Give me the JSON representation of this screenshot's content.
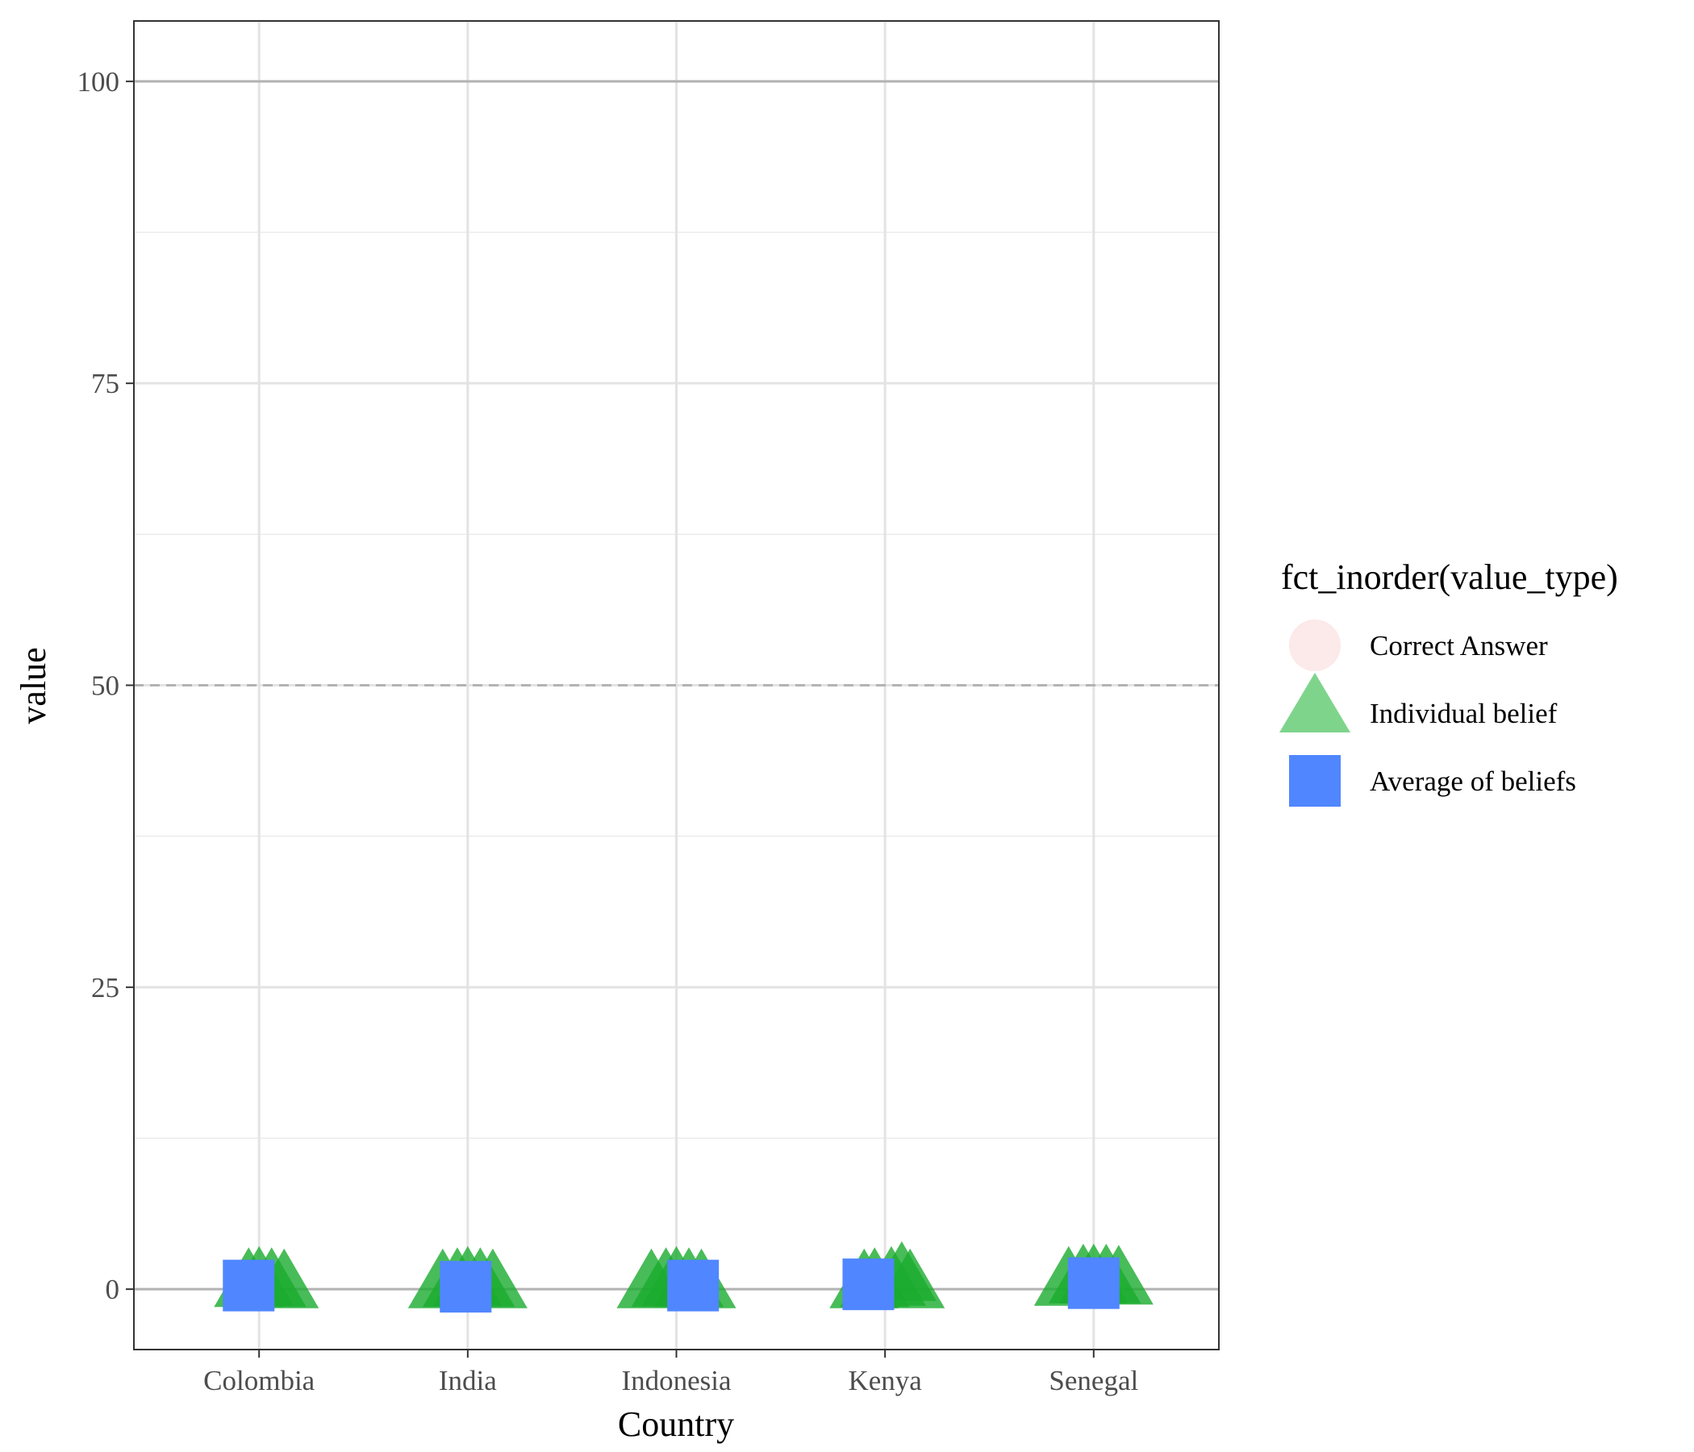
{
  "chart_data": {
    "type": "scatter",
    "title": "",
    "xlabel": "Country",
    "ylabel": "value",
    "categories": [
      "Colombia",
      "India",
      "Indonesia",
      "Kenya",
      "Senegal"
    ],
    "ylim": [
      -5,
      105
    ],
    "yticks": [
      0,
      25,
      50,
      75,
      100
    ],
    "grid": true,
    "reference_lines": [
      {
        "value": 0,
        "style": "solid"
      },
      {
        "value": 50,
        "style": "dashed"
      },
      {
        "value": 100,
        "style": "solid"
      }
    ],
    "legend": {
      "title": "fct_inorder(value_type)",
      "placement": "right",
      "entries": [
        {
          "label": "Correct Answer",
          "shape": "circle",
          "color": "#fce9e9"
        },
        {
          "label": "Individual belief",
          "shape": "triangle",
          "color": "#7fd48c"
        },
        {
          "label": "Average of beliefs",
          "shape": "square",
          "color": "#5086ff"
        }
      ]
    },
    "series": [
      {
        "name": "Individual belief",
        "shape": "triangle",
        "color": "#1aab2e",
        "points": [
          {
            "category": "Colombia",
            "offset": -0.05,
            "value": 0.3
          },
          {
            "category": "Colombia",
            "offset": 0.0,
            "value": 0.4
          },
          {
            "category": "Colombia",
            "offset": 0.06,
            "value": 0.3
          },
          {
            "category": "Colombia",
            "offset": 0.12,
            "value": 0.2
          },
          {
            "category": "India",
            "offset": -0.12,
            "value": 0.2
          },
          {
            "category": "India",
            "offset": -0.05,
            "value": 0.3
          },
          {
            "category": "India",
            "offset": 0.0,
            "value": 0.4
          },
          {
            "category": "India",
            "offset": 0.06,
            "value": 0.3
          },
          {
            "category": "India",
            "offset": 0.12,
            "value": 0.2
          },
          {
            "category": "Indonesia",
            "offset": -0.12,
            "value": 0.2
          },
          {
            "category": "Indonesia",
            "offset": -0.05,
            "value": 0.3
          },
          {
            "category": "Indonesia",
            "offset": 0.0,
            "value": 0.4
          },
          {
            "category": "Indonesia",
            "offset": 0.06,
            "value": 0.3
          },
          {
            "category": "Indonesia",
            "offset": 0.12,
            "value": 0.2
          },
          {
            "category": "Kenya",
            "offset": -0.1,
            "value": 0.2
          },
          {
            "category": "Kenya",
            "offset": -0.05,
            "value": 0.3
          },
          {
            "category": "Kenya",
            "offset": 0.03,
            "value": 0.4
          },
          {
            "category": "Kenya",
            "offset": 0.08,
            "value": 0.8
          },
          {
            "category": "Kenya",
            "offset": 0.12,
            "value": 0.2
          },
          {
            "category": "Senegal",
            "offset": -0.12,
            "value": 0.4
          },
          {
            "category": "Senegal",
            "offset": -0.05,
            "value": 0.6
          },
          {
            "category": "Senegal",
            "offset": 0.0,
            "value": 0.6
          },
          {
            "category": "Senegal",
            "offset": 0.06,
            "value": 0.6
          },
          {
            "category": "Senegal",
            "offset": 0.12,
            "value": 0.5
          }
        ]
      },
      {
        "name": "Average of beliefs",
        "shape": "square",
        "color": "#5086ff",
        "points": [
          {
            "category": "Colombia",
            "offset": -0.05,
            "value": 0.3
          },
          {
            "category": "India",
            "offset": -0.01,
            "value": 0.2
          },
          {
            "category": "Indonesia",
            "offset": 0.08,
            "value": 0.3
          },
          {
            "category": "Kenya",
            "offset": -0.08,
            "value": 0.4
          },
          {
            "category": "Senegal",
            "offset": 0.0,
            "value": 0.5
          }
        ]
      }
    ]
  }
}
